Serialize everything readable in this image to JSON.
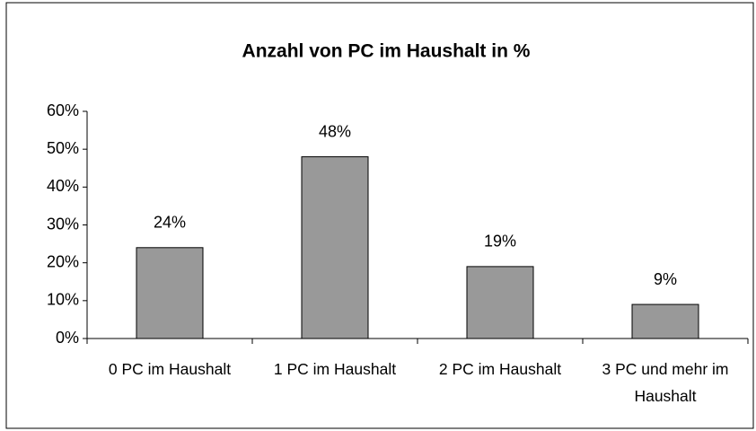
{
  "chart_data": {
    "type": "bar",
    "title": "Anzahl von PC im Haushalt in %",
    "categories": [
      "0 PC im Haushalt",
      "1 PC im Haushalt",
      "2 PC im Haushalt",
      "3 PC und mehr im Haushalt"
    ],
    "values": [
      24,
      48,
      19,
      9
    ],
    "value_labels": [
      "24%",
      "48%",
      "19%",
      "9%"
    ],
    "color": "#999999",
    "ylim": [
      0,
      60
    ],
    "yticks": [
      {
        "value": 0,
        "label": "0%"
      },
      {
        "value": 10,
        "label": "10%"
      },
      {
        "value": 20,
        "label": "20%"
      },
      {
        "value": 30,
        "label": "30%"
      },
      {
        "value": 40,
        "label": "40%"
      },
      {
        "value": 50,
        "label": "50%"
      },
      {
        "value": 60,
        "label": "60%"
      }
    ],
    "grid": false
  }
}
